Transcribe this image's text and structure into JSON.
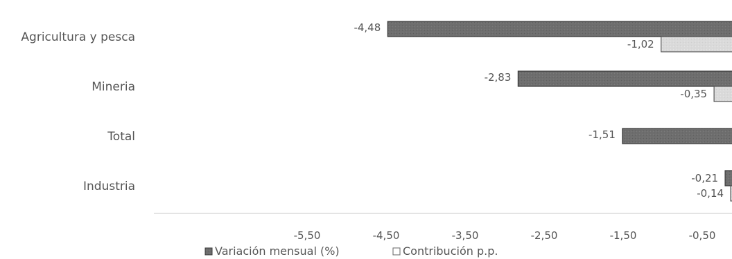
{
  "chart_data": {
    "type": "bar",
    "orientation": "horizontal",
    "categories": [
      "Agricultura y pesca",
      "Mineria",
      "Total",
      "Industria"
    ],
    "series": [
      {
        "name": "Variación mensual (%)",
        "values": [
          -4.48,
          -2.83,
          -1.51,
          -0.21
        ],
        "labels": [
          "-4,48",
          "-2,83",
          "-1,51",
          "-0,21"
        ],
        "color": "#6b6b6b"
      },
      {
        "name": "Contribución p.p.",
        "values": [
          -1.02,
          -0.35,
          null,
          -0.14
        ],
        "labels": [
          "-1,02",
          "-0,35",
          "",
          "-0,14"
        ],
        "color": "#d9d9d9"
      }
    ],
    "x_ticks": [
      "-5,50",
      "-4,50",
      "-3,50",
      "-2,50",
      "-1,50",
      "-0,50"
    ],
    "x_tick_values": [
      -5.5,
      -4.5,
      -3.5,
      -2.5,
      -1.5,
      -0.5
    ],
    "xlim": [
      -5.5,
      0
    ],
    "grid": false,
    "legend_position": "bottom"
  }
}
